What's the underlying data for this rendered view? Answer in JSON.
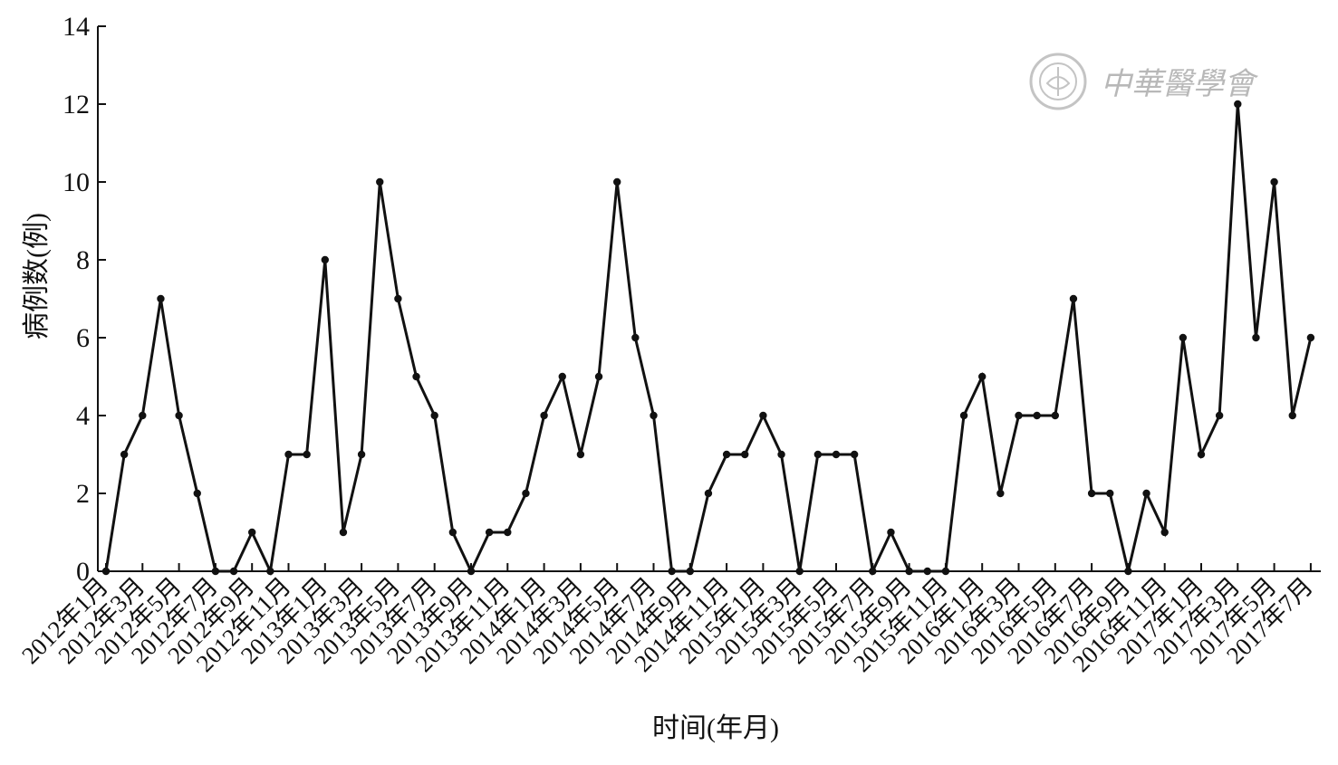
{
  "watermark": {
    "text": "中華醫學會",
    "color": "#b8b8b8"
  },
  "chart_data": {
    "type": "line",
    "title": "",
    "xlabel": "时间(年月)",
    "ylabel": "病例数(例)",
    "ylim": [
      0,
      14
    ],
    "yticks": [
      0,
      2,
      4,
      6,
      8,
      10,
      12,
      14
    ],
    "grid": false,
    "line_color": "#111111",
    "x_tick_labels": [
      "2012年1月",
      "2012年3月",
      "2012年5月",
      "2012年7月",
      "2012年9月",
      "2012年11月",
      "2013年1月",
      "2013年3月",
      "2013年5月",
      "2013年7月",
      "2013年9月",
      "2013年11月",
      "2014年1月",
      "2014年3月",
      "2014年5月",
      "2014年7月",
      "2014年9月",
      "2014年11月",
      "2015年1月",
      "2015年3月",
      "2015年5月",
      "2015年7月",
      "2015年9月",
      "2015年11月",
      "2016年1月",
      "2016年3月",
      "2016年5月",
      "2016年7月",
      "2016年9月",
      "2016年11月",
      "2017年1月",
      "2017年3月",
      "2017年5月",
      "2017年7月"
    ],
    "values": [
      0,
      3,
      4,
      7,
      4,
      2,
      0,
      0,
      1,
      0,
      3,
      3,
      8,
      1,
      3,
      10,
      7,
      5,
      4,
      1,
      0,
      1,
      1,
      2,
      4,
      5,
      3,
      5,
      10,
      6,
      4,
      0,
      0,
      2,
      3,
      3,
      4,
      3,
      0,
      3,
      3,
      3,
      0,
      1,
      0,
      0,
      0,
      4,
      5,
      2,
      4,
      4,
      4,
      7,
      2,
      2,
      0,
      2,
      1,
      6,
      3,
      4,
      12,
      6,
      10,
      4,
      6
    ]
  }
}
